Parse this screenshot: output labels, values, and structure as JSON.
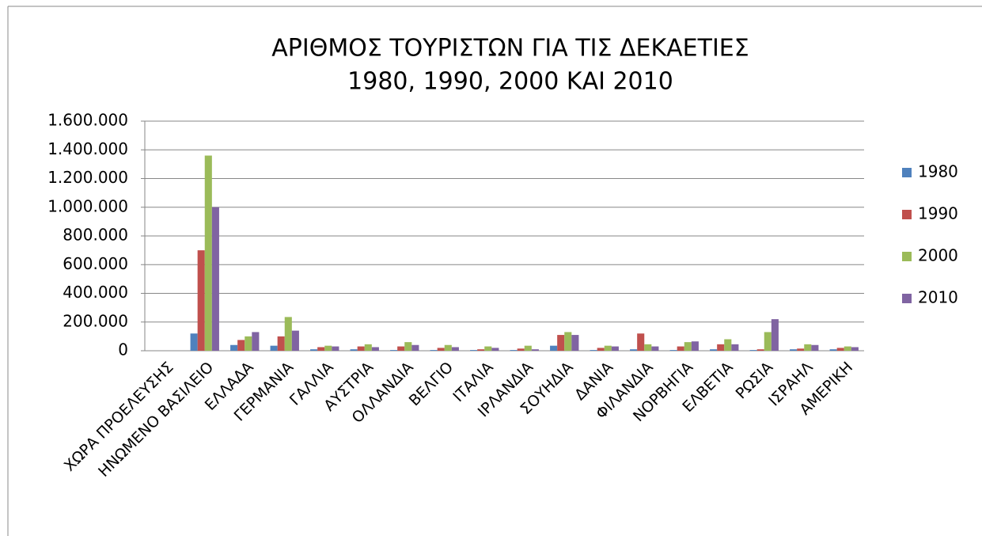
{
  "chart_data": {
    "type": "bar",
    "title": [
      "ΑΡΙΘΜΟΣ ΤΟΥΡΙΣΤΩΝ ΓΙΑ ΤΙΣ ΔΕΚΑΕΤΙΕΣ",
      "1980, 1990, 2000 ΚΑΙ 2010"
    ],
    "categories": [
      "ΧΩΡΑ ΠΡΟΕΛΕΥΣΗΣ",
      "ΗΝΩΜΕΝΟ ΒΑΣΙΛΕΙΟ",
      "ΕΛΛΑΔΑ",
      "ΓΕΡΜΑΝΙΑ",
      "ΓΑΛΛΙΑ",
      "ΑΥΣΤΡΙΑ",
      "ΟΛΛΑΝΔΙΑ",
      "ΒΕΛΓΙΟ",
      "ΙΤΑΛΙΑ",
      "ΙΡΛΑΝΔΙΑ",
      "ΣΟΥΗΔΙΑ",
      "ΔΑΝΙΑ",
      "ΦΙΛΑΝΔΙΑ",
      "ΝΟΡΒΗΓΙΑ",
      "ΕΛΒΕΤΙΑ",
      "ΡΩΣΙΑ",
      "ΙΣΡΑΗΛ",
      "ΑΜΕΡΙΚΗ"
    ],
    "series": [
      {
        "name": "1980",
        "color": "#4f81bd",
        "values": [
          null,
          120000,
          40000,
          35000,
          10000,
          10000,
          5000,
          5000,
          5000,
          5000,
          35000,
          5000,
          10000,
          5000,
          10000,
          5000,
          10000,
          10000
        ]
      },
      {
        "name": "1990",
        "color": "#c0504d",
        "values": [
          null,
          700000,
          75000,
          100000,
          25000,
          30000,
          30000,
          20000,
          10000,
          15000,
          110000,
          20000,
          120000,
          30000,
          45000,
          10000,
          15000,
          20000
        ]
      },
      {
        "name": "2000",
        "color": "#9bbb59",
        "values": [
          null,
          1360000,
          100000,
          235000,
          35000,
          45000,
          60000,
          40000,
          30000,
          35000,
          130000,
          35000,
          45000,
          60000,
          80000,
          130000,
          45000,
          30000
        ]
      },
      {
        "name": "2010",
        "color": "#8064a2",
        "values": [
          null,
          1000000,
          130000,
          140000,
          30000,
          25000,
          40000,
          25000,
          20000,
          10000,
          110000,
          30000,
          30000,
          65000,
          45000,
          220000,
          40000,
          25000
        ]
      }
    ],
    "ylim": [
      0,
      1600000
    ],
    "yticks": [
      0,
      {
        "value": 200000,
        "label": "200.000"
      },
      {
        "value": 400000,
        "label": "400.000"
      },
      {
        "value": 600000,
        "label": "600.000"
      },
      {
        "value": 800000,
        "label": "800.000"
      },
      {
        "value": 1000000,
        "label": "1.000.000"
      },
      {
        "value": 1200000,
        "label": "1.200.000"
      },
      {
        "value": 1400000,
        "label": "1.400.000"
      },
      {
        "value": 1600000,
        "label": "1.600.000"
      }
    ],
    "grid": true,
    "legend": "right"
  }
}
